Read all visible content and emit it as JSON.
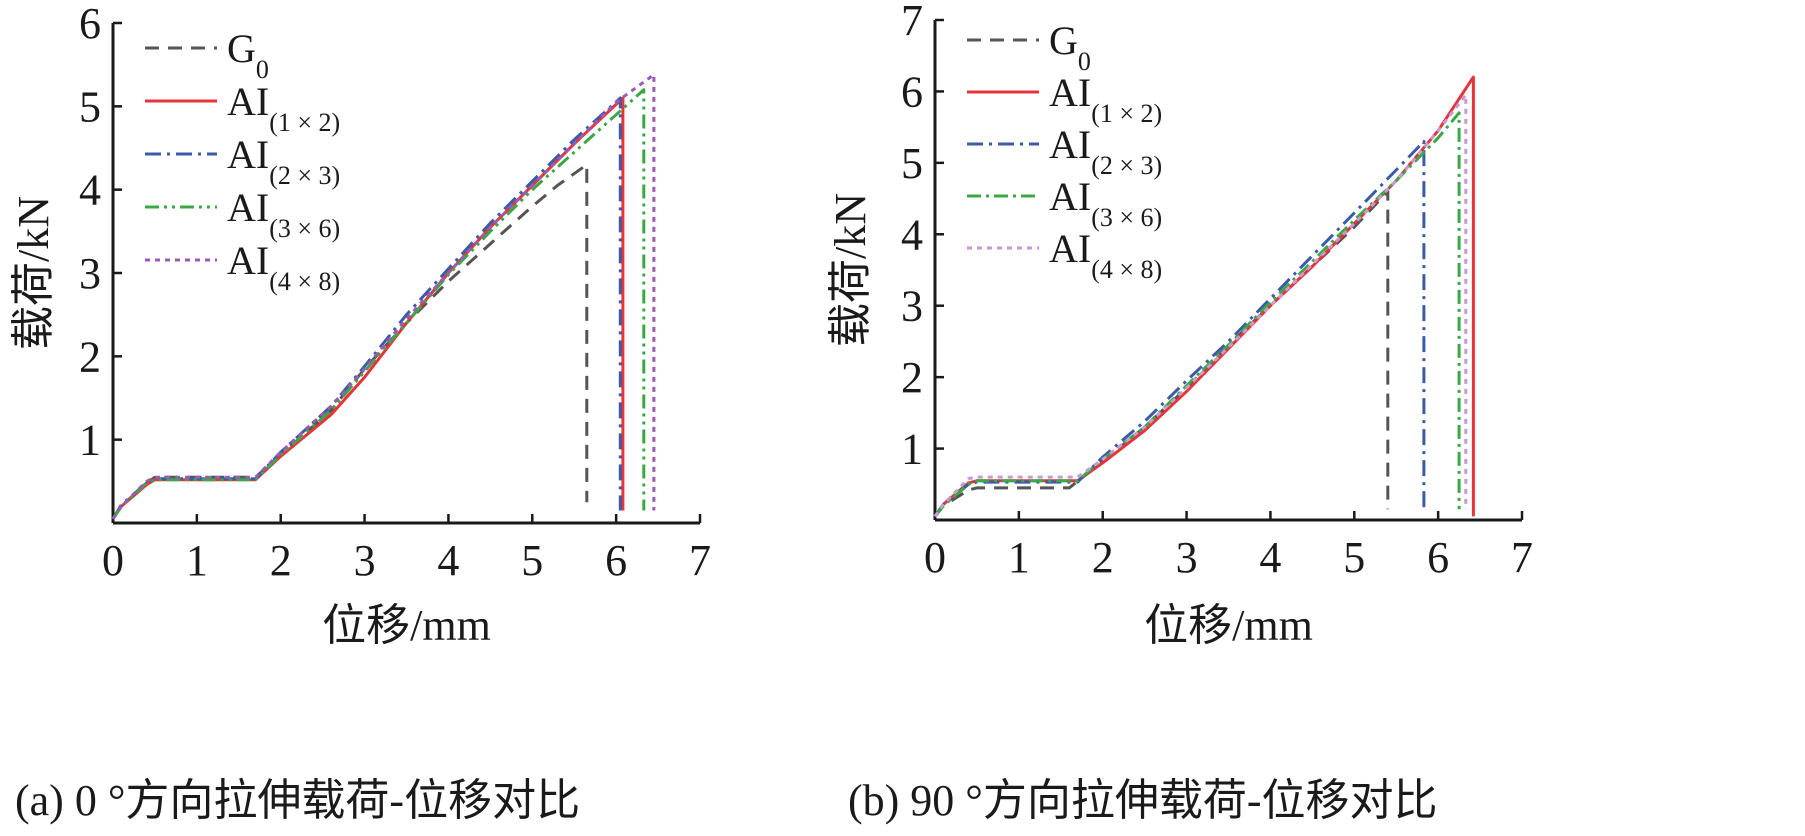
{
  "charts": [
    {
      "caption": "(a) 0 °方向拉伸载荷-位移对比",
      "xlabel": "位移/mm",
      "ylabel": "载荷/kN"
    },
    {
      "caption": "(b) 90 °方向拉伸载荷-位移对比",
      "xlabel": "位移/mm",
      "ylabel": "载荷/kN"
    }
  ],
  "chart_data": [
    {
      "type": "line",
      "title": "(a) 0 °方向拉伸载荷-位移对比",
      "xlabel": "位移/mm",
      "ylabel": "载荷/kN",
      "xlim": [
        0,
        7
      ],
      "ylim": [
        0,
        6
      ],
      "xticks": [
        "0",
        "1",
        "2",
        "3",
        "4",
        "5",
        "6",
        "7"
      ],
      "yticks": [
        "1",
        "2",
        "3",
        "4",
        "5",
        "6"
      ],
      "grid": false,
      "legend_position": "top-left",
      "series": [
        {
          "name": "G0",
          "main": "G",
          "sub": "0",
          "color": "#555555",
          "dash": "14,9",
          "x": [
            0,
            0.1,
            0.4,
            0.5,
            1.0,
            1.7,
            2.0,
            2.6,
            3.0,
            3.5,
            4.0,
            4.5,
            5.0,
            5.3,
            5.65,
            5.65
          ],
          "y": [
            0.05,
            0.2,
            0.48,
            0.55,
            0.55,
            0.55,
            0.82,
            1.35,
            1.85,
            2.4,
            2.9,
            3.35,
            3.8,
            4.05,
            4.3,
            0.25
          ]
        },
        {
          "name": "AI(1×2)",
          "main": "AI",
          "sub": "(1 × 2)",
          "color": "#e8333a",
          "dash": "",
          "x": [
            0,
            0.1,
            0.4,
            0.5,
            1.0,
            1.7,
            2.0,
            2.6,
            3.0,
            3.5,
            4.0,
            4.5,
            5.0,
            5.5,
            6.08,
            6.08
          ],
          "y": [
            0.05,
            0.2,
            0.46,
            0.52,
            0.52,
            0.52,
            0.8,
            1.3,
            1.75,
            2.4,
            3.0,
            3.55,
            4.05,
            4.55,
            5.1,
            0.15
          ]
        },
        {
          "name": "AI(2×3)",
          "main": "AI",
          "sub": "(2 × 3)",
          "color": "#3a5ca8",
          "dash": "16,6,3,6",
          "x": [
            0,
            0.1,
            0.4,
            0.5,
            1.0,
            1.7,
            2.0,
            2.6,
            3.0,
            3.5,
            4.0,
            4.5,
            5.0,
            5.5,
            6.05,
            6.05
          ],
          "y": [
            0.05,
            0.22,
            0.48,
            0.53,
            0.53,
            0.53,
            0.85,
            1.4,
            1.88,
            2.5,
            3.05,
            3.6,
            4.1,
            4.6,
            5.1,
            0.15
          ]
        },
        {
          "name": "AI(3×6)",
          "main": "AI",
          "sub": "(3 × 6)",
          "color": "#3aa845",
          "dash": "14,5,3,5,3,5",
          "x": [
            0,
            0.1,
            0.4,
            0.5,
            1.0,
            1.7,
            2.0,
            2.6,
            3.0,
            3.5,
            4.0,
            4.5,
            5.0,
            5.5,
            6.0,
            6.33,
            6.33
          ],
          "y": [
            0.05,
            0.2,
            0.48,
            0.52,
            0.52,
            0.52,
            0.82,
            1.35,
            1.82,
            2.4,
            2.98,
            3.5,
            4.0,
            4.45,
            4.9,
            5.2,
            0.15
          ]
        },
        {
          "name": "AI(4×8)",
          "main": "AI",
          "sub": "(4 × 8)",
          "color": "#9b5bb5",
          "dash": "5,5",
          "x": [
            0,
            0.1,
            0.4,
            0.5,
            1.0,
            1.7,
            2.0,
            2.6,
            3.0,
            3.5,
            4.0,
            4.5,
            5.0,
            5.5,
            6.0,
            6.45,
            6.45
          ],
          "y": [
            0.05,
            0.2,
            0.5,
            0.55,
            0.55,
            0.55,
            0.85,
            1.4,
            1.85,
            2.45,
            3.0,
            3.55,
            4.05,
            4.55,
            5.05,
            5.38,
            0.15
          ]
        }
      ]
    },
    {
      "type": "line",
      "title": "(b) 90 °方向拉伸载荷-位移对比",
      "xlabel": "位移/mm",
      "ylabel": "载荷/kN",
      "xlim": [
        0,
        7
      ],
      "ylim": [
        0,
        7
      ],
      "xticks": [
        "0",
        "1",
        "2",
        "3",
        "4",
        "5",
        "6",
        "7"
      ],
      "yticks": [
        "1",
        "2",
        "3",
        "4",
        "5",
        "6",
        "7"
      ],
      "grid": false,
      "legend_position": "top-left",
      "series": [
        {
          "name": "G0",
          "main": "G",
          "sub": "0",
          "color": "#555555",
          "dash": "14,9",
          "x": [
            0,
            0.1,
            0.4,
            0.5,
            1.0,
            1.6,
            2.0,
            2.5,
            3.0,
            3.5,
            4.0,
            4.5,
            5.0,
            5.4,
            5.4
          ],
          "y": [
            0.05,
            0.2,
            0.42,
            0.45,
            0.45,
            0.45,
            0.82,
            1.3,
            1.85,
            2.45,
            3.0,
            3.55,
            4.1,
            4.6,
            0.15
          ]
        },
        {
          "name": "AI(1×2)",
          "main": "AI",
          "sub": "(1 × 2)",
          "color": "#e8333a",
          "dash": "",
          "x": [
            0,
            0.1,
            0.4,
            0.5,
            1.0,
            1.7,
            2.0,
            2.5,
            3.0,
            3.5,
            4.0,
            4.5,
            5.0,
            5.5,
            6.0,
            6.42,
            6.42
          ],
          "y": [
            0.05,
            0.22,
            0.52,
            0.55,
            0.55,
            0.55,
            0.8,
            1.25,
            1.8,
            2.4,
            3.0,
            3.55,
            4.15,
            4.75,
            5.45,
            6.2,
            0.05
          ]
        },
        {
          "name": "AI(2×3)",
          "main": "AI",
          "sub": "(2 × 3)",
          "color": "#3a5ca8",
          "dash": "16,6,3,6",
          "x": [
            0,
            0.1,
            0.4,
            0.5,
            1.0,
            1.7,
            2.0,
            2.5,
            3.0,
            3.5,
            4.0,
            4.5,
            5.0,
            5.5,
            5.83,
            5.83
          ],
          "y": [
            0.05,
            0.22,
            0.5,
            0.53,
            0.53,
            0.53,
            0.88,
            1.38,
            1.95,
            2.5,
            3.1,
            3.7,
            4.3,
            4.9,
            5.3,
            0.15
          ]
        },
        {
          "name": "AI(3×6)",
          "main": "AI",
          "sub": "(3 × 6)",
          "color": "#3aa845",
          "dash": "14,5,3,5",
          "x": [
            0,
            0.1,
            0.4,
            0.5,
            1.0,
            1.7,
            2.0,
            2.5,
            3.0,
            3.5,
            4.0,
            4.5,
            5.0,
            5.5,
            6.0,
            6.25,
            6.25
          ],
          "y": [
            0.05,
            0.2,
            0.5,
            0.55,
            0.55,
            0.55,
            0.85,
            1.3,
            1.88,
            2.45,
            3.05,
            3.62,
            4.2,
            4.75,
            5.35,
            5.7,
            0.15
          ]
        },
        {
          "name": "AI(4×8)",
          "main": "AI",
          "sub": "(4 × 8)",
          "color": "#c79ad6",
          "dash": "5,5",
          "x": [
            0,
            0.1,
            0.4,
            0.5,
            1.0,
            1.7,
            2.0,
            2.5,
            3.0,
            3.5,
            4.0,
            4.5,
            5.0,
            5.5,
            6.0,
            6.33,
            6.33
          ],
          "y": [
            0.05,
            0.22,
            0.58,
            0.6,
            0.6,
            0.6,
            0.85,
            1.3,
            1.85,
            2.42,
            3.0,
            3.58,
            4.15,
            4.75,
            5.45,
            5.95,
            0.15
          ]
        }
      ]
    }
  ]
}
